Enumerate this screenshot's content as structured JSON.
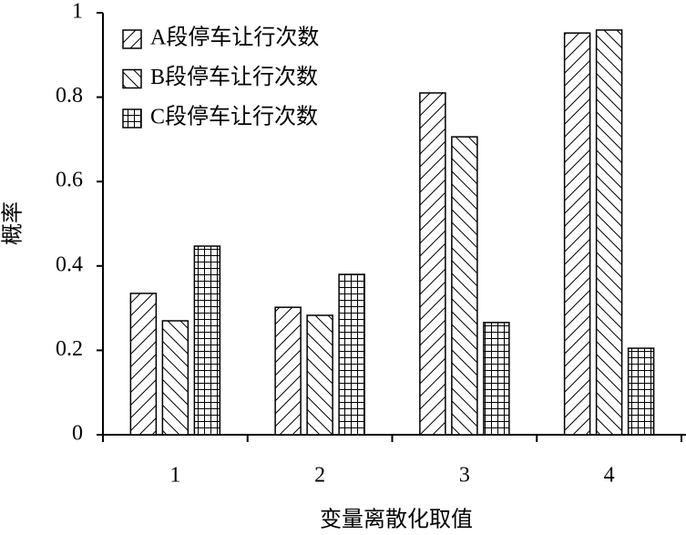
{
  "chart_data": {
    "type": "bar",
    "x_label": "变量离散化取值",
    "y_label": "概率",
    "categories": [
      "1",
      "2",
      "3",
      "4"
    ],
    "series": [
      {
        "name": "A段停车让行次数",
        "color": "#000000",
        "hatch": "/",
        "values": [
          0.335,
          0.302,
          0.81,
          0.952
        ]
      },
      {
        "name": "B段停车让行次数",
        "color": "#000000",
        "hatch": "\\",
        "values": [
          0.27,
          0.283,
          0.706,
          0.959
        ]
      },
      {
        "name": "C段停车让行次数",
        "color": "#000000",
        "hatch": "+",
        "values": [
          0.447,
          0.38,
          0.266,
          0.205
        ]
      }
    ],
    "ylim": [
      0,
      1
    ],
    "yticks": [
      0,
      0.2,
      0.4,
      0.6,
      0.8,
      1
    ],
    "grid": false,
    "legend": "upper left"
  }
}
